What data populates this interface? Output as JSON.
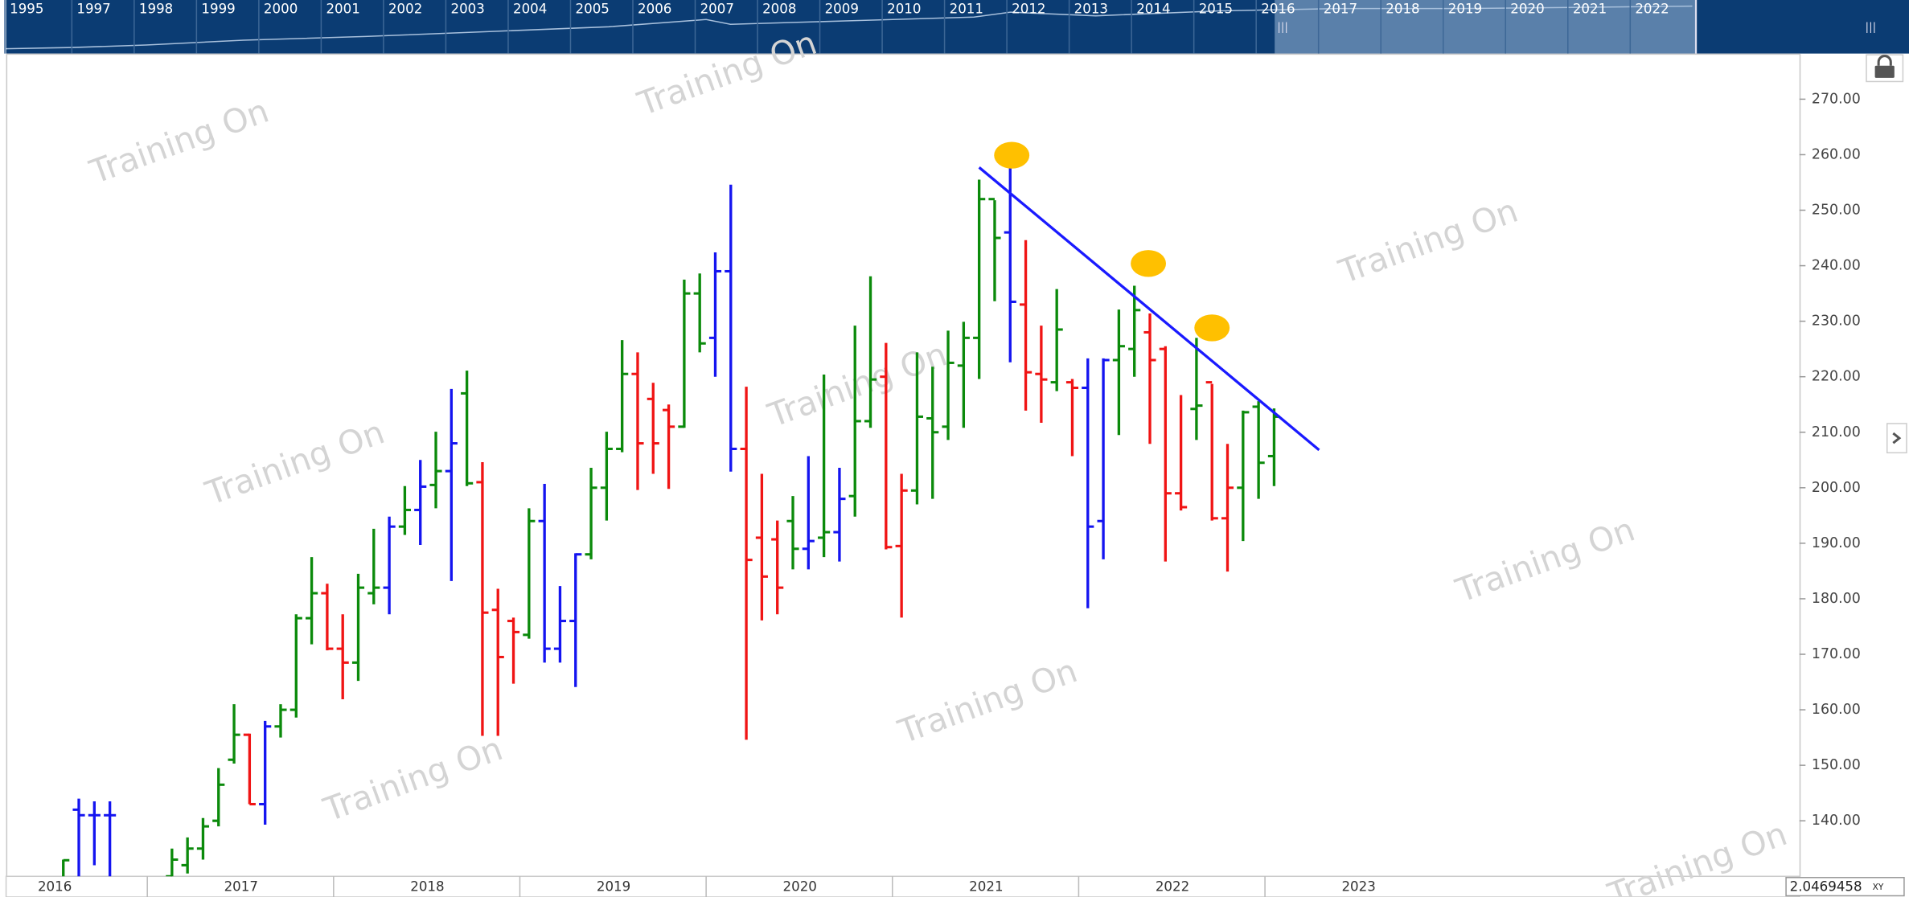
{
  "chart_data": {
    "type": "ohlc",
    "watermark": "Training On",
    "navigator_years": [
      "1995",
      "1997",
      "1998",
      "1999",
      "2000",
      "2001",
      "2002",
      "2003",
      "2004",
      "2005",
      "2006",
      "2007",
      "2008",
      "2009",
      "2010",
      "2011",
      "2012",
      "2013",
      "2014",
      "2015",
      "2016",
      "2017",
      "2018",
      "2019",
      "2020",
      "2021",
      "2022"
    ],
    "x_axis_labels": [
      "2016",
      "2017",
      "2018",
      "2019",
      "2020",
      "2021",
      "2022",
      "2023"
    ],
    "readout": "2.0469458",
    "readout_mode": "XY",
    "ylim": [
      130,
      278
    ],
    "yticks": [
      {
        "value": 140,
        "label": "140.00"
      },
      {
        "value": 150,
        "label": "150.00"
      },
      {
        "value": 160,
        "label": "160.00"
      },
      {
        "value": 170,
        "label": "170.00"
      },
      {
        "value": 180,
        "label": "180.00"
      },
      {
        "value": 190,
        "label": "190.00"
      },
      {
        "value": 200,
        "label": "200.00"
      },
      {
        "value": 210,
        "label": "210.00"
      },
      {
        "value": 220,
        "label": "220.00"
      },
      {
        "value": 230,
        "label": "230.00"
      },
      {
        "value": 240,
        "label": "240.00"
      },
      {
        "value": 250,
        "label": "250.00"
      },
      {
        "value": 260,
        "label": "260.00"
      },
      {
        "value": 270,
        "label": "270.00"
      }
    ],
    "open": [
      128,
      142,
      141,
      141,
      null,
      null,
      null,
      130,
      132,
      135,
      140,
      151,
      155.5,
      143,
      157,
      160,
      176.5,
      181,
      171,
      168.5,
      181,
      182,
      193,
      196,
      200.5,
      203,
      217,
      201,
      178,
      176,
      173.5,
      194,
      171,
      176,
      188,
      200,
      207,
      220.5,
      216,
      214,
      211,
      235,
      227,
      239,
      207,
      191,
      190.7,
      194,
      189,
      191,
      192,
      198.5,
      212,
      220,
      189.5,
      199.5,
      212.5,
      211,
      222,
      227,
      252,
      246,
      233,
      220.5,
      219,
      219,
      218,
      194,
      223,
      225,
      228,
      225,
      199,
      214.2,
      219,
      194.5,
      200,
      214.6,
      205.7
    ],
    "high": [
      133,
      144,
      143.5,
      143.5,
      null,
      null,
      null,
      135,
      137,
      140.5,
      149.5,
      161,
      155.7,
      158,
      161,
      177.2,
      187.5,
      182.7,
      177.2,
      184.5,
      192.6,
      194.8,
      200.3,
      205,
      210.1,
      217.8,
      221.1,
      204.6,
      181.8,
      176.6,
      196.3,
      200.7,
      182.3,
      188.2,
      203.6,
      210.1,
      226.6,
      224.4,
      218.9,
      215,
      237.5,
      238.6,
      242.4,
      254.6,
      218.2,
      202.5,
      194.1,
      198.5,
      205.7,
      220.4,
      203.6,
      229.2,
      238.1,
      226.1,
      202.5,
      224.4,
      221.8,
      228.3,
      229.9,
      255.5,
      251.8,
      257.7,
      244.6,
      229.2,
      235.8,
      219.6,
      223.3,
      223.3,
      232.1,
      236.4,
      231.4,
      225.5,
      216.7,
      227,
      218.7,
      207.9,
      213.9,
      215.6,
      214.3
    ],
    "low": [
      128,
      128,
      132,
      128,
      null,
      null,
      null,
      128,
      130.5,
      133,
      139,
      150.3,
      143,
      139.3,
      155,
      158.6,
      171.8,
      170.7,
      161.9,
      165.2,
      179,
      177.2,
      191.5,
      189.7,
      196.3,
      183.2,
      200.3,
      155.3,
      155.3,
      164.7,
      172.8,
      168.5,
      168.5,
      164.1,
      187.1,
      194.1,
      206.4,
      199.6,
      202.5,
      199.8,
      210.8,
      224.4,
      220,
      202.9,
      154.6,
      176.1,
      177.2,
      185.3,
      185.3,
      187.5,
      186.7,
      194.8,
      210.8,
      188.9,
      176.6,
      197,
      198,
      208.6,
      210.8,
      219.6,
      233.6,
      222.6,
      213.9,
      211.7,
      217.4,
      205.7,
      178.3,
      187.1,
      209.5,
      220,
      207.9,
      186.7,
      195.9,
      208.6,
      194.1,
      184.9,
      190.4,
      198,
      200.3
    ],
    "close": [
      132.9,
      141,
      141,
      141,
      null,
      null,
      null,
      133,
      135,
      139,
      146.5,
      155.5,
      143,
      157,
      160,
      176.5,
      181,
      171,
      168.5,
      182,
      182,
      193,
      196,
      200.2,
      203,
      208,
      200.8,
      177.5,
      169.5,
      174,
      194,
      171,
      176,
      188,
      200,
      207,
      220.5,
      208,
      208,
      211,
      235,
      226,
      239,
      207,
      187,
      184,
      182,
      189,
      190.4,
      192,
      198,
      212,
      219.5,
      189.3,
      199.5,
      212.8,
      210,
      222.5,
      227,
      252,
      245,
      233.5,
      220.8,
      219.5,
      228.5,
      218,
      193,
      223,
      225.5,
      232,
      223,
      199,
      196.5,
      214.8,
      194.5,
      200,
      213.6,
      204.5,
      212.8
    ],
    "colors": [
      "#0b8a0b",
      "#1414f0",
      "#1414f0",
      "#1414f0",
      null,
      null,
      null,
      "#0b8a0b",
      "#0b8a0b",
      "#0b8a0b",
      "#0b8a0b",
      "#0b8a0b",
      "#f01414",
      "#1414f0",
      "#0b8a0b",
      "#0b8a0b",
      "#0b8a0b",
      "#f01414",
      "#f01414",
      "#0b8a0b",
      "#0b8a0b",
      "#1414f0",
      "#0b8a0b",
      "#1414f0",
      "#0b8a0b",
      "#1414f0",
      "#0b8a0b",
      "#f01414",
      "#f01414",
      "#f01414",
      "#0b8a0b",
      "#1414f0",
      "#1414f0",
      "#1414f0",
      "#0b8a0b",
      "#0b8a0b",
      "#0b8a0b",
      "#f01414",
      "#f01414",
      "#f01414",
      "#0b8a0b",
      "#0b8a0b",
      "#1414f0",
      "#1414f0",
      "#f01414",
      "#f01414",
      "#f01414",
      "#0b8a0b",
      "#1414f0",
      "#0b8a0b",
      "#1414f0",
      "#0b8a0b",
      "#0b8a0b",
      "#f01414",
      "#f01414",
      "#0b8a0b",
      "#0b8a0b",
      "#0b8a0b",
      "#0b8a0b",
      "#0b8a0b",
      "#0b8a0b",
      "#1414f0",
      "#f01414",
      "#f01414",
      "#0b8a0b",
      "#f01414",
      "#1414f0",
      "#1414f0",
      "#0b8a0b",
      "#0b8a0b",
      "#f01414",
      "#f01414",
      "#f01414",
      "#0b8a0b",
      "#f01414",
      "#f01414",
      "#0b8a0b",
      "#0b8a0b",
      "#0b8a0b"
    ],
    "trendline": {
      "color": "#1a1aff",
      "x": [
        59,
        80.9
      ],
      "y": [
        257.7,
        206.8
      ]
    },
    "markers": {
      "color": "#ffc000",
      "x": [
        61.1,
        69.9,
        74.0
      ],
      "y": [
        259.9,
        240.4,
        228.8
      ]
    }
  }
}
